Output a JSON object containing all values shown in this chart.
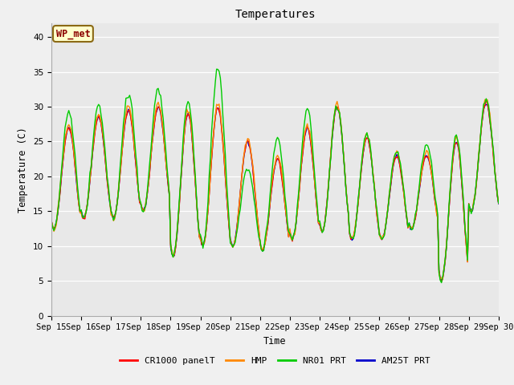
{
  "title": "Temperatures",
  "xlabel": "Time",
  "ylabel": "Temperature (C)",
  "ylim": [
    0,
    42
  ],
  "yticks": [
    0,
    5,
    10,
    15,
    20,
    25,
    30,
    35,
    40
  ],
  "fig_bg_color": "#f0f0f0",
  "plot_bg_color": "#e8e8e8",
  "annotation_text": "WP_met",
  "annotation_color": "#8b0000",
  "annotation_bg": "#ffffcc",
  "annotation_border": "#8b6914",
  "series_colors": [
    "#ff0000",
    "#ff8800",
    "#00cc00",
    "#0000cc"
  ],
  "series_labels": [
    "CR1000 panelT",
    "HMP",
    "NR01 PRT",
    "AM25T PRT"
  ],
  "x_dates": [
    "Sep 15",
    "Sep 16",
    "Sep 17",
    "Sep 18",
    "Sep 19",
    "Sep 20",
    "Sep 21",
    "Sep 22",
    "Sep 23",
    "Sep 24",
    "Sep 25",
    "Sep 26",
    "Sep 27",
    "Sep 28",
    "Sep 29",
    "Sep 30"
  ],
  "n_days": 15,
  "line_width": 1.0,
  "tick_font_size": 7.5,
  "label_font_size": 8.5,
  "title_font_size": 10,
  "daily_max_base": [
    27.0,
    28.5,
    29.5,
    30.0,
    29.0,
    30.0,
    25.0,
    22.5,
    27.0,
    30.0,
    25.5,
    23.0,
    23.0,
    25.0,
    30.5
  ],
  "daily_min_base": [
    12.5,
    14.0,
    14.0,
    15.0,
    8.5,
    10.0,
    10.0,
    9.5,
    11.0,
    12.0,
    11.0,
    11.0,
    12.5,
    5.0,
    15.0
  ],
  "nr01_extra_max": [
    29.0,
    30.0,
    32.0,
    32.5,
    30.5,
    35.5,
    21.0,
    25.5,
    29.5,
    30.0,
    26.0,
    23.5,
    24.5,
    26.0,
    31.0
  ],
  "peak_hour": 14,
  "trough_hour": 4
}
